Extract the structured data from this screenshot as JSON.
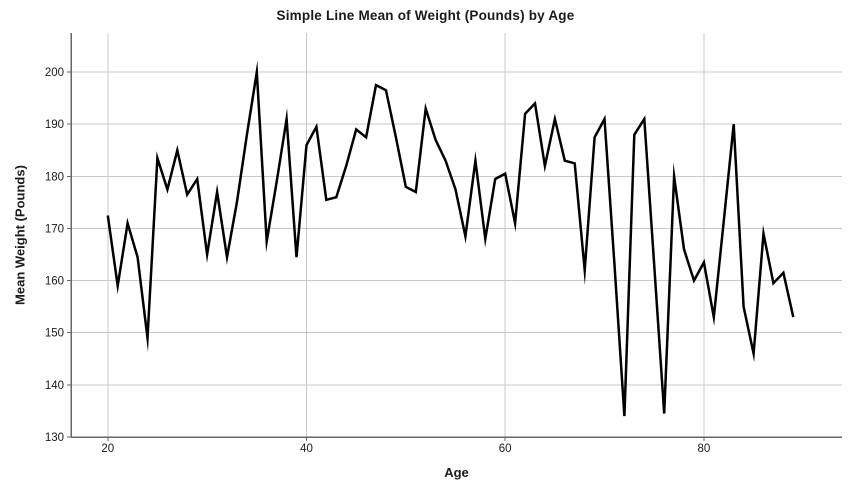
{
  "chart_data": {
    "type": "line",
    "title": "Simple Line Mean of Weight (Pounds) by Age",
    "xlabel": "Age",
    "ylabel": "Mean Weight (Pounds)",
    "x": [
      20,
      21,
      22,
      23,
      24,
      25,
      26,
      27,
      28,
      29,
      30,
      31,
      32,
      33,
      34,
      35,
      36,
      37,
      38,
      39,
      40,
      41,
      42,
      43,
      44,
      45,
      46,
      47,
      48,
      49,
      50,
      51,
      52,
      53,
      54,
      55,
      56,
      57,
      58,
      59,
      60,
      61,
      62,
      63,
      64,
      65,
      66,
      67,
      68,
      69,
      70,
      71,
      72,
      73,
      74,
      75,
      76,
      77,
      78,
      79,
      80,
      81,
      82,
      83,
      84,
      85,
      86,
      87,
      88,
      89
    ],
    "values": [
      172.5,
      159,
      171,
      164.5,
      149,
      183.5,
      177.5,
      185,
      176.5,
      179.5,
      165,
      177,
      164.5,
      175,
      188,
      200,
      167.5,
      179,
      191,
      164.5,
      186,
      189.5,
      175.5,
      176,
      182,
      189,
      187.5,
      197.5,
      196.5,
      187.5,
      178,
      177,
      193,
      187,
      183,
      177.5,
      168.5,
      183,
      168,
      179.5,
      180.5,
      171,
      192,
      194,
      182,
      191,
      183,
      182.5,
      162,
      187.5,
      191,
      163,
      134,
      188,
      191,
      163,
      134.5,
      180,
      166,
      160,
      163.5,
      153,
      171.5,
      190,
      155,
      146,
      169,
      159.5,
      161.5,
      153
    ],
    "xticks": [
      20,
      40,
      60,
      80
    ],
    "yticks": [
      130,
      140,
      150,
      160,
      170,
      180,
      190,
      200
    ],
    "xlim": [
      16.3,
      93.9
    ],
    "ylim": [
      130,
      207.5
    ],
    "grid": true,
    "legend_position": "none",
    "line_color": "#000000",
    "line_width": 2.5,
    "grid_color": "#c9c9c9",
    "axis_color": "#666666",
    "text_color": "#1a1a1a",
    "background_color": "#ffffff"
  }
}
